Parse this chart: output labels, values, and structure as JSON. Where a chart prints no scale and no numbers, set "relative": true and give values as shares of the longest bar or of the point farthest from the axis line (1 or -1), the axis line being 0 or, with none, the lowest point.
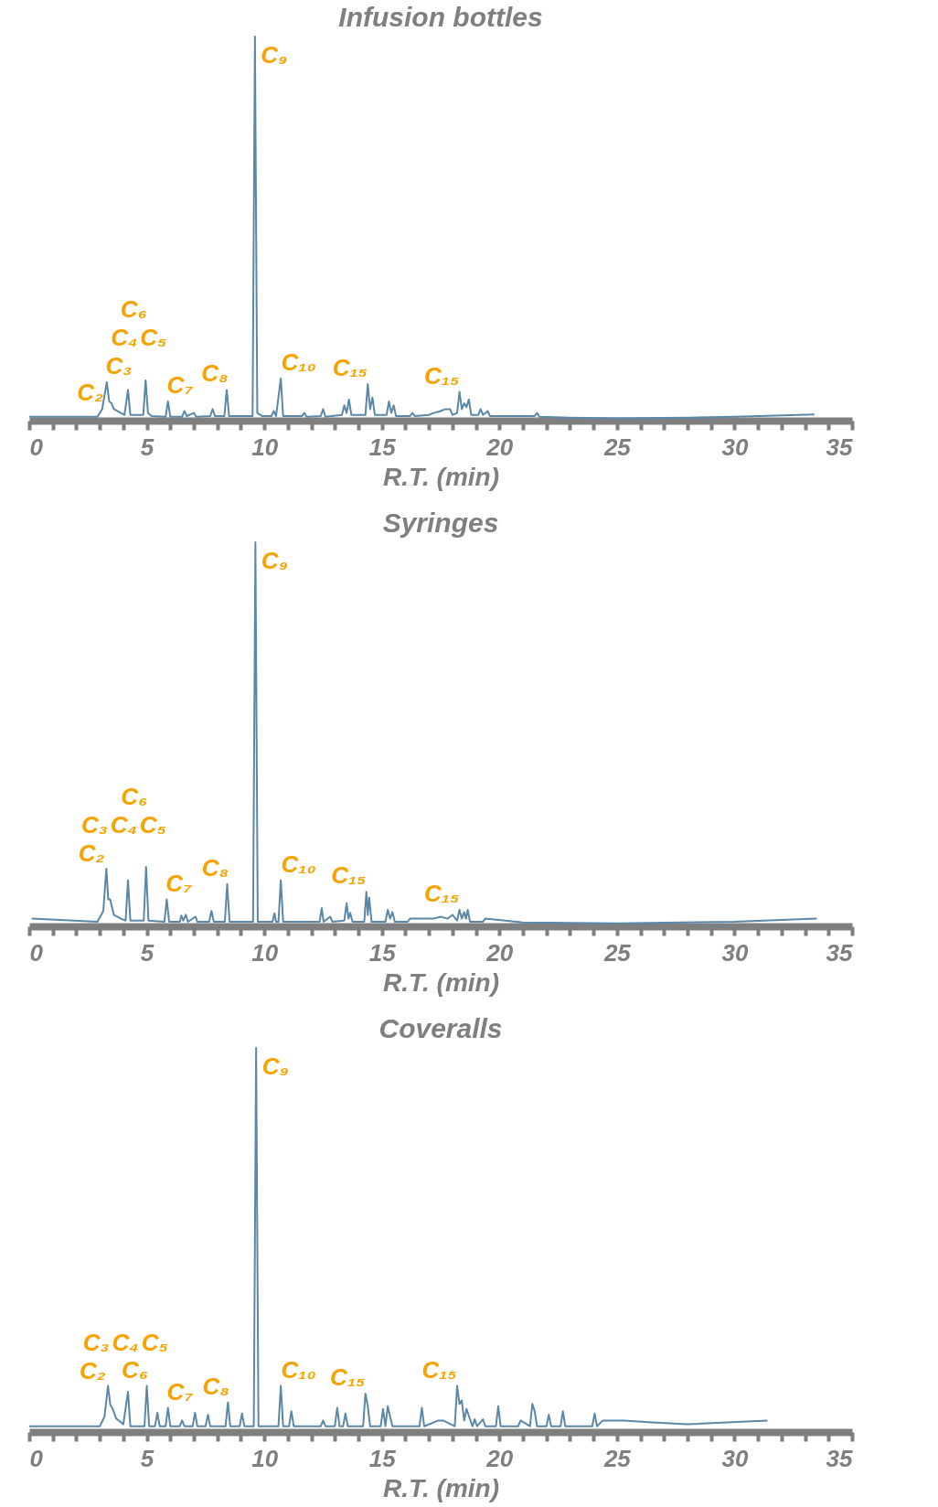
{
  "chart_data": [
    {
      "type": "line",
      "relative": true,
      "title": "Infusion bottles",
      "xlabel": "R.T. (min)",
      "xlim": [
        0,
        35
      ],
      "xticks": [
        0,
        {
          "value": 1,
          "label": null
        },
        {
          "value": 2,
          "label": null
        },
        {
          "value": 3,
          "label": null
        },
        {
          "value": 4,
          "label": null
        },
        5,
        {
          "value": 6,
          "label": null
        },
        {
          "value": 7,
          "label": null
        },
        {
          "value": 8,
          "label": null
        },
        {
          "value": 9,
          "label": null
        },
        10,
        {
          "value": 11,
          "label": null
        },
        {
          "value": 12,
          "label": null
        },
        {
          "value": 13,
          "label": null
        },
        {
          "value": 14,
          "label": null
        },
        15,
        {
          "value": 16,
          "label": null
        },
        {
          "value": 17,
          "label": null
        },
        {
          "value": 18,
          "label": null
        },
        {
          "value": 19,
          "label": null
        },
        20,
        {
          "value": 21,
          "label": null
        },
        {
          "value": 22,
          "label": null
        },
        {
          "value": 23,
          "label": null
        },
        {
          "value": 24,
          "label": null
        },
        25,
        {
          "value": 26,
          "label": null
        },
        {
          "value": 27,
          "label": null
        },
        {
          "value": 28,
          "label": null
        },
        {
          "value": 29,
          "label": null
        },
        30,
        {
          "value": 31,
          "label": null
        },
        {
          "value": 32,
          "label": null
        },
        {
          "value": 33,
          "label": null
        },
        {
          "value": 34,
          "label": null
        },
        35
      ],
      "series": [
        {
          "color": "#5b87a8",
          "x": [
            0,
            2.9,
            3.1,
            3.3,
            3.4,
            3.5,
            3.6,
            3.9,
            4.05,
            4.2,
            4.3,
            4.85,
            4.95,
            5.05,
            5.2,
            5.8,
            5.9,
            6.0,
            6.5,
            6.6,
            6.7,
            7.0,
            7.1,
            7.7,
            7.8,
            7.9,
            8.3,
            8.4,
            8.5,
            9.5,
            9.6,
            9.7,
            9.9,
            10.3,
            10.4,
            10.5,
            10.7,
            10.8,
            11.6,
            11.7,
            11.8,
            12.4,
            12.5,
            12.6,
            13.3,
            13.4,
            13.5,
            13.6,
            13.7,
            14.3,
            14.4,
            14.5,
            14.6,
            14.7,
            15.2,
            15.3,
            15.4,
            15.5,
            15.6,
            16.2,
            16.3,
            16.4,
            17.0,
            17.2,
            17.5,
            17.7,
            17.9,
            18.0,
            18.2,
            18.3,
            18.4,
            18.5,
            18.6,
            18.7,
            18.8,
            19.1,
            19.2,
            19.3,
            19.5,
            19.6,
            21.5,
            21.6,
            21.7,
            23,
            25,
            28,
            30,
            33.4
          ],
          "values": [
            0.01,
            0.01,
            0.03,
            0.1,
            0.05,
            0.045,
            0.03,
            0.02,
            0.015,
            0.08,
            0.015,
            0.015,
            0.105,
            0.02,
            0.012,
            0.01,
            0.05,
            0.01,
            0.01,
            0.025,
            0.012,
            0.02,
            0.01,
            0.012,
            0.03,
            0.012,
            0.012,
            0.08,
            0.012,
            0.012,
            1.0,
            0.02,
            0.012,
            0.012,
            0.025,
            0.012,
            0.11,
            0.012,
            0.012,
            0.02,
            0.01,
            0.012,
            0.03,
            0.01,
            0.015,
            0.04,
            0.02,
            0.055,
            0.015,
            0.015,
            0.095,
            0.03,
            0.06,
            0.015,
            0.015,
            0.05,
            0.02,
            0.04,
            0.012,
            0.012,
            0.02,
            0.012,
            0.015,
            0.02,
            0.025,
            0.03,
            0.03,
            0.015,
            0.02,
            0.075,
            0.03,
            0.045,
            0.035,
            0.055,
            0.015,
            0.015,
            0.03,
            0.015,
            0.025,
            0.012,
            0.012,
            0.02,
            0.01,
            0.008,
            0.006,
            0.008,
            0.01,
            0.016
          ]
        }
      ],
      "annotations": [
        {
          "text": "C₂",
          "x": 3.1,
          "y": 0.03
        },
        {
          "text": "C₃",
          "x": 3.3,
          "y": 0.1
        },
        "C₄",
        "C₅",
        {
          "text": "C₆",
          "x": 4.95,
          "y": 0.105
        },
        {
          "text": "C₇",
          "x": 5.9,
          "y": 0.05
        },
        {
          "text": "C₈",
          "x": 8.4,
          "y": 0.08
        },
        {
          "text": "C₉",
          "x": 9.6,
          "y": 1.0
        },
        {
          "text": "C₁₀",
          "x": 10.7,
          "y": 0.11
        },
        {
          "text": "C₁₅",
          "x": 14.4,
          "y": 0.095
        },
        {
          "text": "C₁₅",
          "x": 18.3,
          "y": 0.075
        }
      ]
    },
    {
      "type": "line",
      "relative": true,
      "title": "Syringes",
      "xlabel": "R.T. (min)",
      "xlim": [
        0,
        35
      ],
      "xticks": [
        0,
        {
          "value": 1,
          "label": null
        },
        {
          "value": 2,
          "label": null
        },
        {
          "value": 3,
          "label": null
        },
        {
          "value": 4,
          "label": null
        },
        5,
        {
          "value": 6,
          "label": null
        },
        {
          "value": 7,
          "label": null
        },
        {
          "value": 8,
          "label": null
        },
        {
          "value": 9,
          "label": null
        },
        10,
        {
          "value": 11,
          "label": null
        },
        {
          "value": 12,
          "label": null
        },
        {
          "value": 13,
          "label": null
        },
        {
          "value": 14,
          "label": null
        },
        15,
        {
          "value": 16,
          "label": null
        },
        {
          "value": 17,
          "label": null
        },
        {
          "value": 18,
          "label": null
        },
        {
          "value": 19,
          "label": null
        },
        20,
        {
          "value": 21,
          "label": null
        },
        {
          "value": 22,
          "label": null
        },
        {
          "value": 23,
          "label": null
        },
        {
          "value": 24,
          "label": null
        },
        25,
        {
          "value": 26,
          "label": null
        },
        {
          "value": 27,
          "label": null
        },
        {
          "value": 28,
          "label": null
        },
        {
          "value": 29,
          "label": null
        },
        30,
        {
          "value": 31,
          "label": null
        },
        {
          "value": 32,
          "label": null
        },
        {
          "value": 33,
          "label": null
        },
        {
          "value": 34,
          "label": null
        },
        35
      ],
      "series": [
        {
          "color": "#5b87a8",
          "x": [
            0.1,
            2.9,
            3.15,
            3.28,
            3.36,
            3.44,
            3.6,
            3.9,
            4.1,
            4.2,
            4.3,
            4.87,
            4.97,
            5.07,
            5.75,
            5.85,
            5.95,
            6.4,
            6.47,
            6.55,
            6.66,
            6.75,
            7.07,
            7.15,
            7.65,
            7.75,
            7.85,
            8.32,
            8.42,
            8.52,
            9.52,
            9.62,
            9.72,
            10.35,
            10.43,
            10.5,
            10.6,
            10.7,
            10.8,
            12.35,
            12.44,
            12.52,
            12.8,
            12.9,
            13.4,
            13.5,
            13.58,
            13.65,
            13.75,
            14.25,
            14.34,
            14.4,
            14.46,
            14.56,
            15.15,
            15.25,
            15.35,
            15.45,
            15.55,
            16.1,
            16.2,
            17.2,
            17.5,
            17.8,
            18.0,
            18.2,
            18.3,
            18.4,
            18.5,
            18.58,
            18.65,
            18.75,
            19.3,
            19.4,
            21,
            25,
            30,
            33.5
          ],
          "values": [
            0.02,
            0.012,
            0.04,
            0.15,
            0.07,
            0.07,
            0.03,
            0.02,
            0.015,
            0.12,
            0.015,
            0.015,
            0.155,
            0.015,
            0.012,
            0.07,
            0.012,
            0.012,
            0.028,
            0.015,
            0.03,
            0.012,
            0.025,
            0.012,
            0.012,
            0.04,
            0.012,
            0.012,
            0.11,
            0.012,
            0.012,
            1.0,
            0.012,
            0.012,
            0.034,
            0.012,
            0.012,
            0.12,
            0.012,
            0.012,
            0.047,
            0.012,
            0.025,
            0.012,
            0.015,
            0.06,
            0.02,
            0.035,
            0.012,
            0.012,
            0.09,
            0.03,
            0.075,
            0.012,
            0.012,
            0.043,
            0.02,
            0.037,
            0.012,
            0.012,
            0.02,
            0.02,
            0.025,
            0.02,
            0.03,
            0.015,
            0.043,
            0.02,
            0.037,
            0.02,
            0.043,
            0.012,
            0.012,
            0.02,
            0.01,
            0.008,
            0.012,
            0.02
          ]
        }
      ],
      "annotations": [
        {
          "text": "C₂",
          "x": 3.15,
          "y": 0.04
        },
        {
          "text": "C₃",
          "x": 3.28,
          "y": 0.15
        },
        "C₄",
        "C₅",
        {
          "text": "C₆",
          "x": 4.97,
          "y": 0.155
        },
        {
          "text": "C₇",
          "x": 5.85,
          "y": 0.07
        },
        {
          "text": "C₈",
          "x": 8.42,
          "y": 0.11
        },
        {
          "text": "C₉",
          "x": 9.62,
          "y": 1.0
        },
        {
          "text": "C₁₀",
          "x": 10.7,
          "y": 0.12
        },
        {
          "text": "C₁₅",
          "x": 14.34,
          "y": 0.09
        },
        {
          "text": "C₁₅",
          "x": 18.3,
          "y": 0.043
        }
      ]
    },
    {
      "type": "line",
      "relative": true,
      "title": "Coveralls",
      "xlabel": "R.T. (min)",
      "xlim": [
        0,
        35
      ],
      "xticks": [
        0,
        {
          "value": 1,
          "label": null
        },
        {
          "value": 2,
          "label": null
        },
        {
          "value": 3,
          "label": null
        },
        {
          "value": 4,
          "label": null
        },
        5,
        {
          "value": 6,
          "label": null
        },
        {
          "value": 7,
          "label": null
        },
        {
          "value": 8,
          "label": null
        },
        {
          "value": 9,
          "label": null
        },
        10,
        {
          "value": 11,
          "label": null
        },
        {
          "value": 12,
          "label": null
        },
        {
          "value": 13,
          "label": null
        },
        {
          "value": 14,
          "label": null
        },
        15,
        {
          "value": 16,
          "label": null
        },
        {
          "value": 17,
          "label": null
        },
        {
          "value": 18,
          "label": null
        },
        {
          "value": 19,
          "label": null
        },
        20,
        {
          "value": 21,
          "label": null
        },
        {
          "value": 22,
          "label": null
        },
        {
          "value": 23,
          "label": null
        },
        {
          "value": 24,
          "label": null
        },
        25,
        {
          "value": 26,
          "label": null
        },
        {
          "value": 27,
          "label": null
        },
        {
          "value": 28,
          "label": null
        },
        {
          "value": 29,
          "label": null
        },
        30,
        {
          "value": 31,
          "label": null
        },
        {
          "value": 32,
          "label": null
        },
        {
          "value": 33,
          "label": null
        },
        {
          "value": 34,
          "label": null
        },
        35
      ],
      "series": [
        {
          "color": "#5b87a8",
          "x": [
            0,
            3.0,
            3.2,
            3.35,
            3.45,
            3.55,
            3.7,
            4.0,
            4.2,
            4.3,
            4.9,
            5.0,
            5.1,
            5.35,
            5.45,
            5.55,
            5.8,
            5.9,
            6.0,
            6.4,
            6.5,
            6.6,
            6.95,
            7.05,
            7.15,
            7.5,
            7.6,
            7.7,
            8.35,
            8.45,
            8.55,
            8.95,
            9.05,
            9.15,
            9.55,
            9.65,
            9.75,
            10.6,
            10.7,
            10.8,
            11.05,
            11.15,
            11.25,
            12.4,
            12.5,
            12.6,
            13.0,
            13.1,
            13.2,
            13.35,
            13.45,
            13.55,
            14.2,
            14.3,
            14.4,
            14.5,
            14.95,
            15.05,
            15.15,
            15.25,
            15.35,
            15.45,
            16.6,
            16.7,
            16.8,
            17.4,
            17.6,
            18.1,
            18.2,
            18.3,
            18.4,
            18.5,
            18.6,
            18.85,
            18.95,
            19.05,
            19.3,
            19.4,
            19.85,
            19.95,
            20.05,
            20.8,
            20.9,
            21.3,
            21.4,
            21.5,
            21.6,
            22.0,
            22.1,
            22.2,
            22.6,
            22.7,
            22.8,
            23.95,
            24.05,
            24.15,
            24.4,
            25.3,
            26.5,
            28,
            31.4
          ],
          "values": [
            0.015,
            0.015,
            0.04,
            0.12,
            0.07,
            0.06,
            0.035,
            0.02,
            0.105,
            0.015,
            0.015,
            0.12,
            0.015,
            0.015,
            0.05,
            0.015,
            0.015,
            0.063,
            0.015,
            0.015,
            0.03,
            0.015,
            0.015,
            0.05,
            0.015,
            0.015,
            0.045,
            0.015,
            0.015,
            0.077,
            0.015,
            0.015,
            0.048,
            0.015,
            0.015,
            1.0,
            0.015,
            0.015,
            0.12,
            0.015,
            0.015,
            0.054,
            0.015,
            0.015,
            0.03,
            0.015,
            0.015,
            0.063,
            0.015,
            0.015,
            0.048,
            0.015,
            0.015,
            0.1,
            0.067,
            0.015,
            0.015,
            0.06,
            0.015,
            0.067,
            0.04,
            0.015,
            0.015,
            0.063,
            0.015,
            0.03,
            0.03,
            0.015,
            0.12,
            0.073,
            0.082,
            0.03,
            0.06,
            0.015,
            0.033,
            0.015,
            0.033,
            0.015,
            0.015,
            0.067,
            0.015,
            0.015,
            0.03,
            0.015,
            0.073,
            0.054,
            0.015,
            0.015,
            0.045,
            0.015,
            0.015,
            0.054,
            0.015,
            0.015,
            0.048,
            0.015,
            0.03,
            0.03,
            0.025,
            0.02,
            0.03
          ]
        }
      ],
      "annotations": [
        {
          "text": "C₂",
          "x": 3.2,
          "y": 0.04
        },
        {
          "text": "C₃",
          "x": 3.35,
          "y": 0.12
        },
        "C₄",
        "C₅",
        {
          "text": "C₆",
          "x": 5.0,
          "y": 0.12
        },
        {
          "text": "C₇",
          "x": 5.9,
          "y": 0.063
        },
        {
          "text": "C₈",
          "x": 8.45,
          "y": 0.077
        },
        {
          "text": "C₉",
          "x": 9.65,
          "y": 1.0
        },
        {
          "text": "C₁₀",
          "x": 10.7,
          "y": 0.12
        },
        {
          "text": "C₁₅",
          "x": 14.3,
          "y": 0.1
        },
        {
          "text": "C₁₅",
          "x": 18.2,
          "y": 0.12
        }
      ]
    }
  ]
}
